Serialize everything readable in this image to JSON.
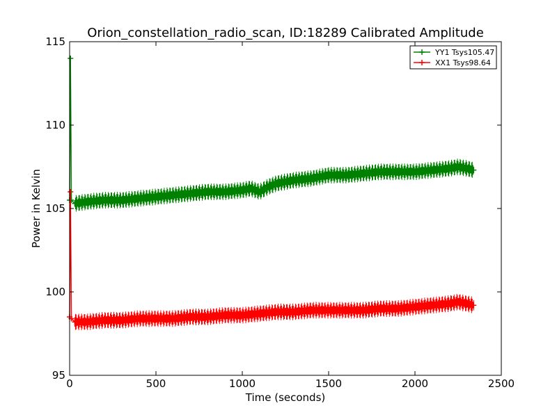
{
  "chart_data": {
    "type": "line",
    "title": "Orion_constellation_radio_scan, ID:18289 Calibrated Amplitude",
    "xlabel": "Time (seconds)",
    "ylabel": "Power in Kelvin",
    "xlim": [
      0,
      2500
    ],
    "ylim": [
      95,
      115
    ],
    "xticks": [
      0,
      500,
      1000,
      1500,
      2000,
      2500
    ],
    "yticks": [
      95,
      100,
      105,
      110,
      115
    ],
    "xtick_labels": [
      "0",
      "500",
      "1000",
      "1500",
      "2000",
      "2500"
    ],
    "ytick_labels": [
      "95",
      "100",
      "105",
      "110",
      "115"
    ],
    "grid": false,
    "legend_position": "top-right",
    "series": [
      {
        "name": "YY1 Tsys105.47",
        "color": "#008000",
        "marker": "+",
        "x": [
          0,
          5,
          10,
          30,
          100,
          200,
          300,
          400,
          500,
          600,
          700,
          800,
          900,
          1000,
          1050,
          1100,
          1150,
          1200,
          1300,
          1400,
          1500,
          1600,
          1700,
          1800,
          1900,
          2000,
          2100,
          2200,
          2250,
          2300,
          2340
        ],
        "y": [
          105.5,
          114,
          105.5,
          105.3,
          105.4,
          105.5,
          105.5,
          105.6,
          105.7,
          105.8,
          105.9,
          106.0,
          106.0,
          106.1,
          106.2,
          106.0,
          106.3,
          106.5,
          106.7,
          106.8,
          107.0,
          107.0,
          107.1,
          107.2,
          107.2,
          107.2,
          107.3,
          107.4,
          107.5,
          107.4,
          107.3
        ]
      },
      {
        "name": "XX1 Tsys98.64",
        "color": "#ff0000",
        "marker": "+",
        "x": [
          0,
          5,
          10,
          30,
          100,
          200,
          300,
          400,
          500,
          600,
          700,
          800,
          900,
          1000,
          1100,
          1200,
          1300,
          1400,
          1500,
          1600,
          1700,
          1800,
          1900,
          2000,
          2100,
          2200,
          2250,
          2300,
          2340
        ],
        "y": [
          98.5,
          106,
          98.4,
          98.2,
          98.2,
          98.3,
          98.3,
          98.4,
          98.4,
          98.4,
          98.5,
          98.5,
          98.6,
          98.6,
          98.7,
          98.8,
          98.8,
          98.9,
          98.9,
          98.9,
          98.9,
          99.0,
          99.0,
          99.1,
          99.2,
          99.3,
          99.4,
          99.3,
          99.2
        ]
      }
    ]
  }
}
